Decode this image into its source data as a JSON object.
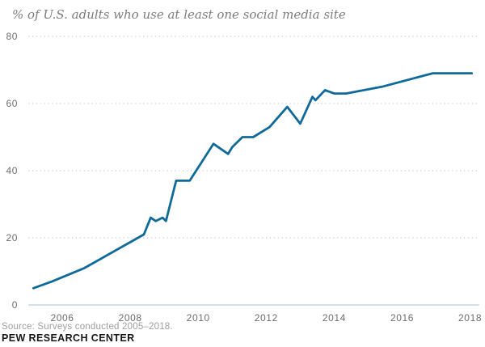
{
  "header": {
    "title": "% of U.S. adults who use at least one social media site"
  },
  "footer": {
    "source": "Source: Surveys conducted 2005–2018.",
    "branding": "PEW RESEARCH CENTER"
  },
  "colors": {
    "line": "#0f6a99",
    "gridline": "#cccccc",
    "axis_line": "#bccfdb",
    "tick_label": "#6d6d6d",
    "title": "#7d7d7d",
    "source": "#9d9d9d",
    "branding": "#161616",
    "background": "#ffffff"
  },
  "chart_data": {
    "type": "line",
    "title": "% of U.S. adults who use at least one social media site",
    "xlabel": "",
    "ylabel": "",
    "legend": "none",
    "grid": "horizontal-dotted",
    "xlim": [
      2005,
      2018.2
    ],
    "ylim": [
      0,
      80
    ],
    "x_ticks": [
      2006,
      2008,
      2010,
      2012,
      2014,
      2016,
      2018
    ],
    "y_ticks": [
      0,
      20,
      40,
      60,
      80
    ],
    "series": [
      {
        "name": "% of U.S. adults who use at least one social media site",
        "points": [
          [
            2005.15,
            5
          ],
          [
            2005.7,
            7
          ],
          [
            2006.65,
            11
          ],
          [
            2008.4,
            21
          ],
          [
            2008.6,
            26
          ],
          [
            2008.75,
            25
          ],
          [
            2008.95,
            26
          ],
          [
            2009.05,
            25
          ],
          [
            2009.35,
            37
          ],
          [
            2009.75,
            37
          ],
          [
            2010.45,
            48
          ],
          [
            2010.88,
            45
          ],
          [
            2011.0,
            47
          ],
          [
            2011.3,
            50
          ],
          [
            2011.62,
            50
          ],
          [
            2012.1,
            53
          ],
          [
            2012.62,
            59
          ],
          [
            2013.0,
            54
          ],
          [
            2013.36,
            62
          ],
          [
            2013.45,
            61
          ],
          [
            2013.73,
            64
          ],
          [
            2014.0,
            63
          ],
          [
            2014.35,
            63
          ],
          [
            2015.4,
            65
          ],
          [
            2016.9,
            69
          ],
          [
            2018.05,
            69
          ]
        ]
      }
    ]
  }
}
